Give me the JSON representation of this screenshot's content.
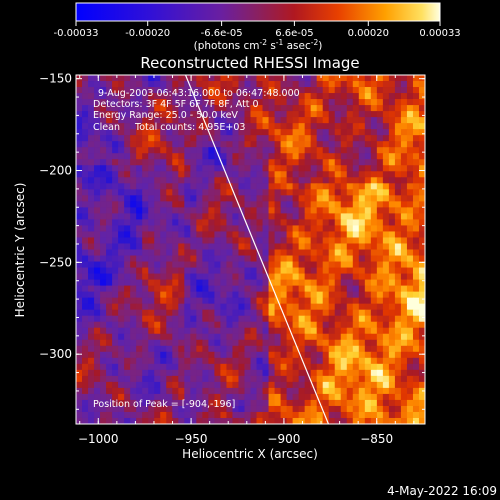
{
  "colorbar": {
    "ticks": [
      "-0.00033",
      "-0.00020",
      "-6.6e-05",
      "6.6e-05",
      "0.00020",
      "0.00033"
    ],
    "tick_values": [
      -0.00033,
      -0.0002,
      -6.6e-05,
      6.6e-05,
      0.0002,
      0.00033
    ],
    "range": [
      -0.00033,
      0.00033
    ],
    "units_prefix": "(photons cm",
    "units_exp1": "-2",
    "units_mid1": " s",
    "units_exp2": "-1",
    "units_mid2": " asec",
    "units_exp3": "-2",
    "units_suffix": ")"
  },
  "chart_data": {
    "type": "heatmap",
    "title": "Reconstructed RHESSI Image",
    "xlabel": "Heliocentric X (arcsec)",
    "ylabel": "Heliocentric Y (arcsec)",
    "xlim": [
      -1012,
      -824
    ],
    "ylim": [
      -338,
      -148
    ],
    "x_ticks": [
      -1000,
      -950,
      -900,
      -850
    ],
    "x_tick_labels": [
      "−1000",
      "−950",
      "−900",
      "−850"
    ],
    "y_ticks": [
      -150,
      -200,
      -250,
      -300
    ],
    "y_tick_labels": [
      "−150",
      "−200",
      "−250",
      "−300"
    ],
    "annotations": {
      "time_range": "9-Aug-2003 06:43:16.000 to 06:47:48.000",
      "detectors": "Detectors: 3F 4F 5F 6F 7F 8F, Att 0",
      "energy": "Energy Range: 25.0 - 50.0 keV",
      "clean": "Clean     Total counts: 4.95E+03",
      "peak": "Position of Peak = [-904,-196]"
    },
    "peak_position": [
      -904,
      -196
    ],
    "limb_line": [
      [
        -953,
        -148
      ],
      [
        -876,
        -338
      ]
    ]
  },
  "timestamp": "4-May-2022 16:09"
}
